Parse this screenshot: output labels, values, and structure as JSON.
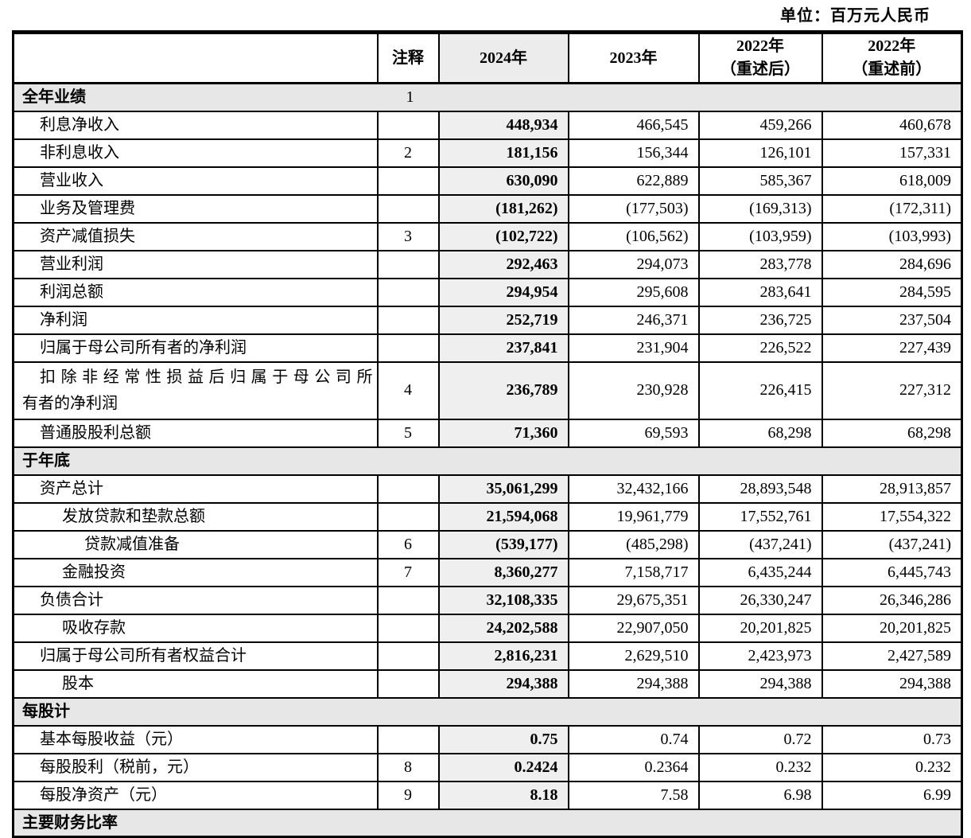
{
  "meta": {
    "unit_label": "单位：百万元人民币"
  },
  "table": {
    "headers": {
      "label": "",
      "note": "注释",
      "y2024": "2024年",
      "y2023": "2023年",
      "y2022_restated": "2022年\n（重述后）",
      "y2022_original": "2022年\n（重述前）"
    },
    "rows": [
      {
        "section": true,
        "label": "全年业绩",
        "note": "1"
      },
      {
        "label": "利息净收入",
        "indent": 1,
        "note": "",
        "values": [
          "448,934",
          "466,545",
          "459,266",
          "460,678"
        ]
      },
      {
        "label": "非利息收入",
        "indent": 1,
        "note": "2",
        "values": [
          "181,156",
          "156,344",
          "126,101",
          "157,331"
        ]
      },
      {
        "label": "营业收入",
        "indent": 1,
        "note": "",
        "values": [
          "630,090",
          "622,889",
          "585,367",
          "618,009"
        ]
      },
      {
        "label": "业务及管理费",
        "indent": 1,
        "note": "",
        "values": [
          "(181,262)",
          "(177,503)",
          "(169,313)",
          "(172,311)"
        ]
      },
      {
        "label": "资产减值损失",
        "indent": 1,
        "note": "3",
        "values": [
          "(102,722)",
          "(106,562)",
          "(103,959)",
          "(103,993)"
        ]
      },
      {
        "label": "营业利润",
        "indent": 1,
        "note": "",
        "values": [
          "292,463",
          "294,073",
          "283,778",
          "284,696"
        ]
      },
      {
        "label": "利润总额",
        "indent": 1,
        "note": "",
        "values": [
          "294,954",
          "295,608",
          "283,641",
          "284,595"
        ]
      },
      {
        "label": "净利润",
        "indent": 1,
        "note": "",
        "values": [
          "252,719",
          "246,371",
          "236,725",
          "237,504"
        ]
      },
      {
        "label": "归属于母公司所有者的净利润",
        "indent": 1,
        "note": "",
        "values": [
          "237,841",
          "231,904",
          "226,522",
          "227,439"
        ]
      },
      {
        "label": "扣除非经常性损益后归属于母公司所",
        "label2": "有者的净利润",
        "tall": true,
        "indent": 1,
        "note": "4",
        "values": [
          "236,789",
          "230,928",
          "226,415",
          "227,312"
        ]
      },
      {
        "label": "普通股股利总额",
        "indent": 1,
        "note": "5",
        "values": [
          "71,360",
          "69,593",
          "68,298",
          "68,298"
        ]
      },
      {
        "section": true,
        "label": "于年底",
        "note": ""
      },
      {
        "label": "资产总计",
        "indent": 1,
        "note": "",
        "values": [
          "35,061,299",
          "32,432,166",
          "28,893,548",
          "28,913,857"
        ]
      },
      {
        "label": "发放贷款和垫款总额",
        "indent": 2,
        "note": "",
        "values": [
          "21,594,068",
          "19,961,779",
          "17,552,761",
          "17,554,322"
        ]
      },
      {
        "label": "贷款减值准备",
        "indent": 3,
        "note": "6",
        "values": [
          "(539,177)",
          "(485,298)",
          "(437,241)",
          "(437,241)"
        ]
      },
      {
        "label": "金融投资",
        "indent": 2,
        "note": "7",
        "values": [
          "8,360,277",
          "7,158,717",
          "6,435,244",
          "6,445,743"
        ]
      },
      {
        "label": "负债合计",
        "indent": 1,
        "note": "",
        "values": [
          "32,108,335",
          "29,675,351",
          "26,330,247",
          "26,346,286"
        ]
      },
      {
        "label": "吸收存款",
        "indent": 2,
        "note": "",
        "values": [
          "24,202,588",
          "22,907,050",
          "20,201,825",
          "20,201,825"
        ]
      },
      {
        "label": "归属于母公司所有者权益合计",
        "indent": 1,
        "note": "",
        "values": [
          "2,816,231",
          "2,629,510",
          "2,423,973",
          "2,427,589"
        ]
      },
      {
        "label": "股本",
        "indent": 2,
        "note": "",
        "values": [
          "294,388",
          "294,388",
          "294,388",
          "294,388"
        ]
      },
      {
        "section": true,
        "label": "每股计",
        "note": ""
      },
      {
        "label": "基本每股收益（元）",
        "indent": 1,
        "note": "",
        "values": [
          "0.75",
          "0.74",
          "0.72",
          "0.73"
        ]
      },
      {
        "label": "每股股利（税前，元）",
        "indent": 1,
        "note": "8",
        "values": [
          "0.2424",
          "0.2364",
          "0.232",
          "0.232"
        ]
      },
      {
        "label": "每股净资产（元）",
        "indent": 1,
        "note": "9",
        "values": [
          "8.18",
          "7.58",
          "6.98",
          "6.99"
        ]
      },
      {
        "section": true,
        "label": "主要财务比率",
        "note": "",
        "partial": true
      }
    ]
  }
}
